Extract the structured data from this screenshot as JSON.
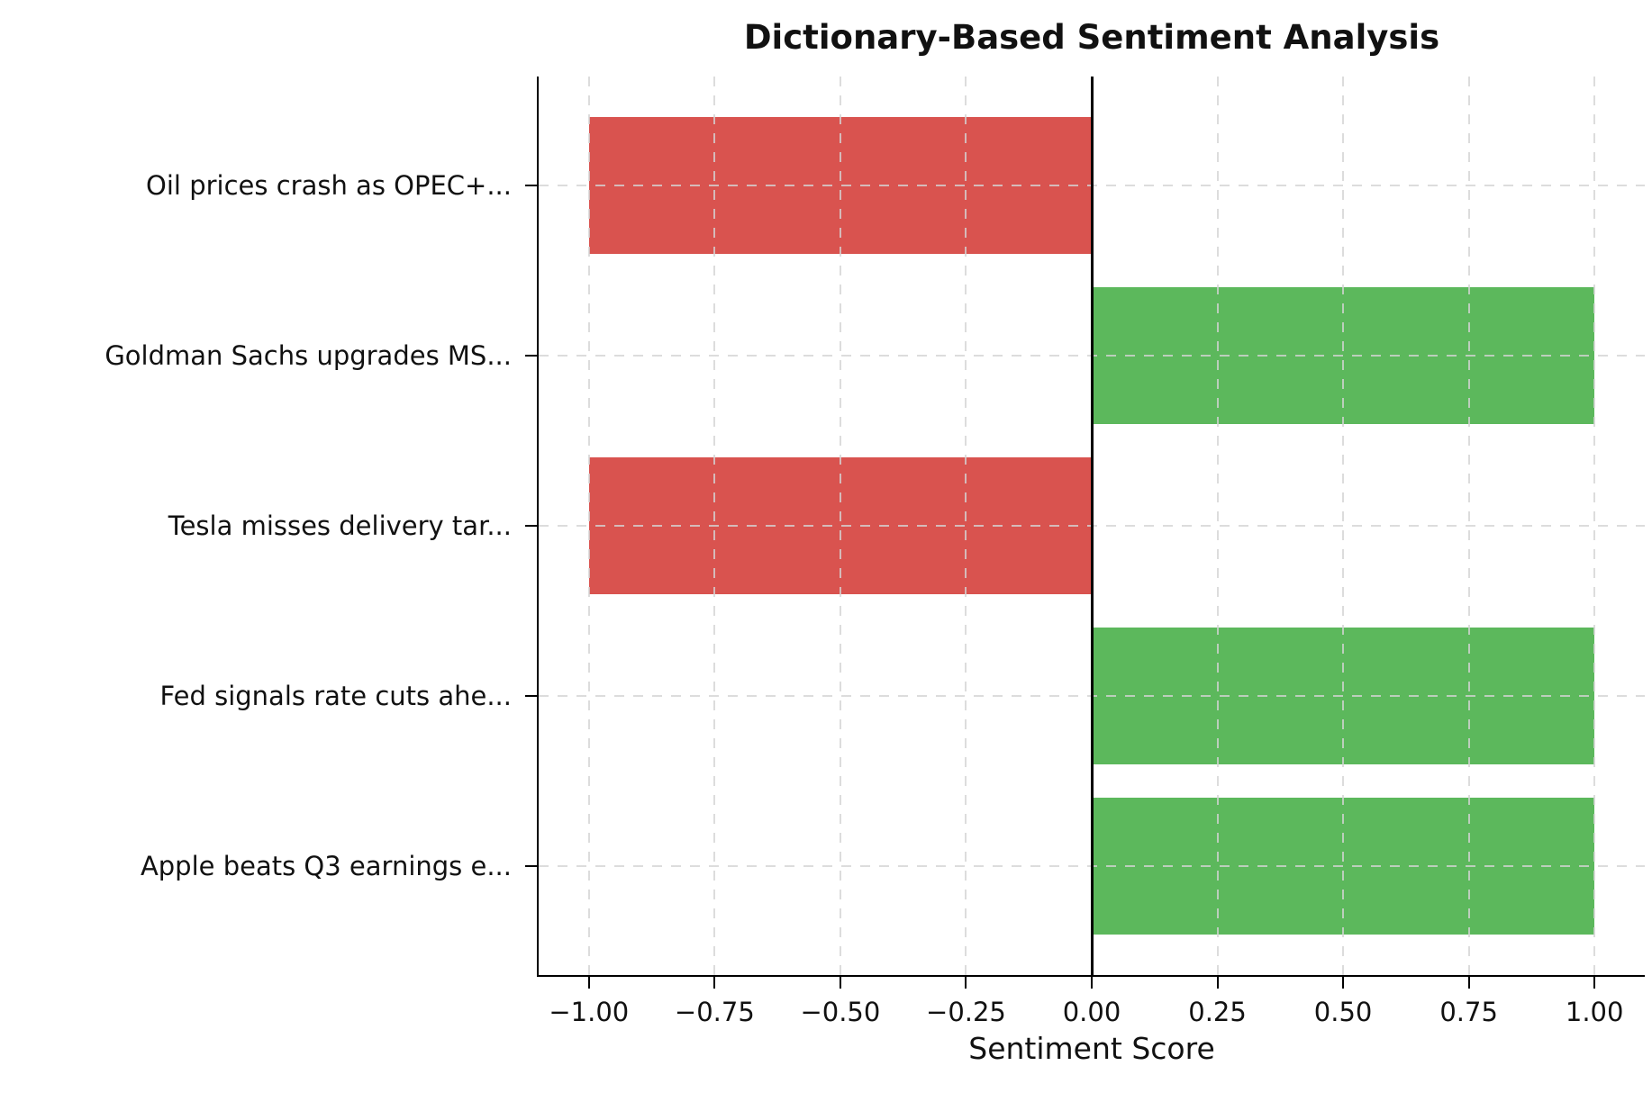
{
  "chart_data": {
    "type": "bar",
    "orientation": "horizontal",
    "title": "Dictionary-Based Sentiment Analysis",
    "xlabel": "Sentiment Score",
    "ylabel": "",
    "categories": [
      "Oil prices crash as OPEC+...",
      "Goldman Sachs upgrades MS...",
      "Tesla misses delivery tar...",
      "Fed signals rate cuts ahe...",
      "Apple beats Q3 earnings e..."
    ],
    "values": [
      -1.0,
      1.0,
      -1.0,
      1.0,
      1.0
    ],
    "bar_colors": [
      "#d9534f",
      "#5cb85c",
      "#d9534f",
      "#5cb85c",
      "#5cb85c"
    ],
    "x_ticks": [
      -1.0,
      -0.75,
      -0.5,
      -0.25,
      0.0,
      0.25,
      0.5,
      0.75,
      1.0
    ],
    "x_tick_labels": [
      "−1.00",
      "−0.75",
      "−0.50",
      "−0.25",
      "0.00",
      "0.25",
      "0.50",
      "0.75",
      "1.00"
    ],
    "xlim": [
      -1.1,
      1.1
    ],
    "grid": true,
    "grid_style": "dashed",
    "legend": "none",
    "zero_line": true,
    "colors": {
      "negative_bar": "#d9534f",
      "positive_bar": "#5cb85c",
      "grid": "#d4d4d4",
      "axis": "#000000",
      "background": "#ffffff"
    }
  }
}
